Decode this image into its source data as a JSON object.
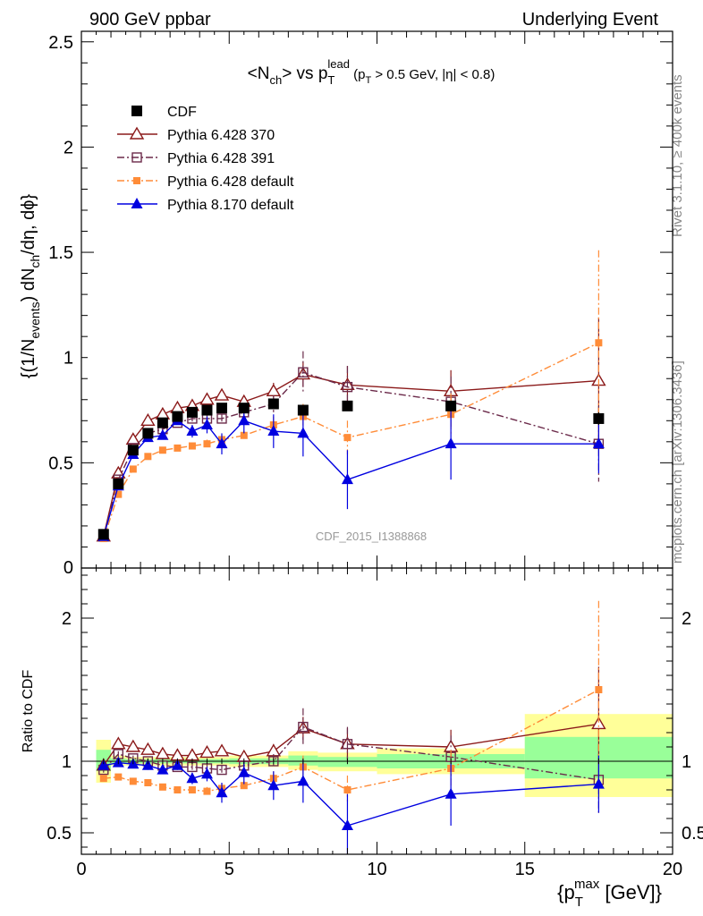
{
  "header": {
    "left": "900 GeV ppbar",
    "right": "Underlying Event"
  },
  "side": {
    "rivet": "Rivet 3.1.10, ≥ 400k events",
    "mcplots": "mcplots.cern.ch [arXiv:1306.3436]"
  },
  "chart_data": [
    {
      "type": "scatter",
      "title": "<N_ch> vs p_T^lead (p_T > 0.5 GeV, |η| < 0.8)",
      "watermark": "CDF_2015_I1388868",
      "ylabel": "{(1/N_events) dN_ch/dη, dϕ}",
      "xlim": [
        0,
        20
      ],
      "ylim": [
        0,
        2.55
      ],
      "yticks": [
        "0.5",
        "1",
        "1.5",
        "2",
        "2.5"
      ],
      "legend_position": "top-left",
      "x": [
        0.75,
        1.25,
        1.75,
        2.25,
        2.75,
        3.25,
        3.75,
        4.25,
        4.75,
        5.5,
        6.5,
        7.5,
        9.0,
        12.5,
        17.5
      ],
      "series": [
        {
          "name": "CDF",
          "color": "#000000",
          "marker": "square-filled",
          "line": "none",
          "values": [
            0.16,
            0.4,
            0.56,
            0.64,
            0.69,
            0.72,
            0.74,
            0.75,
            0.76,
            0.76,
            0.78,
            0.75,
            0.77,
            0.77,
            0.71
          ],
          "errors": [
            0.01,
            0.01,
            0.01,
            0.01,
            0.01,
            0.01,
            0.01,
            0.01,
            0.01,
            0.01,
            0.02,
            0.02,
            0.02,
            0.02,
            0.03
          ]
        },
        {
          "name": "Pythia 6.428 370",
          "color": "#8b1a1a",
          "marker": "triangle-open",
          "line": "solid",
          "values": [
            0.15,
            0.45,
            0.61,
            0.7,
            0.73,
            0.76,
            0.77,
            0.8,
            0.82,
            0.79,
            0.84,
            0.92,
            0.87,
            0.84,
            0.89
          ],
          "errors": [
            0.01,
            0.01,
            0.01,
            0.01,
            0.01,
            0.01,
            0.02,
            0.02,
            0.02,
            0.02,
            0.04,
            0.06,
            0.09,
            0.1,
            0.3
          ]
        },
        {
          "name": "Pythia 6.428 391",
          "color": "#6b2a4a",
          "marker": "square-open",
          "line": "dashdot",
          "values": [
            0.15,
            0.42,
            0.57,
            0.64,
            0.66,
            0.69,
            0.71,
            0.71,
            0.71,
            0.74,
            0.78,
            0.93,
            0.86,
            0.79,
            0.59
          ],
          "errors": [
            0.01,
            0.01,
            0.01,
            0.01,
            0.01,
            0.01,
            0.02,
            0.02,
            0.02,
            0.02,
            0.04,
            0.1,
            0.1,
            0.12,
            0.18
          ]
        },
        {
          "name": "Pythia 6.428 default",
          "color": "#ff8c38",
          "marker": "square-filled-small",
          "line": "dashdot",
          "values": [
            0.14,
            0.35,
            0.47,
            0.53,
            0.56,
            0.57,
            0.58,
            0.59,
            0.61,
            0.63,
            0.68,
            0.72,
            0.62,
            0.73,
            1.07
          ],
          "errors": [
            0.01,
            0.01,
            0.01,
            0.01,
            0.01,
            0.01,
            0.01,
            0.02,
            0.02,
            0.02,
            0.04,
            0.06,
            0.08,
            0.1,
            0.44
          ]
        },
        {
          "name": "Pythia 8.170 default",
          "color": "#0000e0",
          "marker": "triangle-filled",
          "line": "solid",
          "values": [
            0.15,
            0.39,
            0.54,
            0.62,
            0.63,
            0.7,
            0.65,
            0.68,
            0.59,
            0.7,
            0.65,
            0.64,
            0.42,
            0.59,
            0.59
          ],
          "errors": [
            0.01,
            0.01,
            0.01,
            0.02,
            0.02,
            0.02,
            0.03,
            0.04,
            0.05,
            0.06,
            0.08,
            0.11,
            0.14,
            0.17,
            0.14
          ]
        }
      ]
    },
    {
      "type": "scatter",
      "ylabel": "Ratio to CDF",
      "xlabel": "{p_T^max [GeV]}",
      "xlim": [
        0,
        20
      ],
      "ylim": [
        0.35,
        2.35
      ],
      "xticks": [
        "0",
        "5",
        "10",
        "15",
        "20"
      ],
      "yticks": [
        "0.5",
        "1",
        "2"
      ],
      "bands": [
        {
          "x0": 0.5,
          "x1": 1.0,
          "yellow": [
            0.85,
            1.15
          ],
          "green": [
            0.93,
            1.08
          ]
        },
        {
          "x0": 1.0,
          "x1": 1.5,
          "yellow": [
            0.97,
            1.04
          ],
          "green": [
            0.985,
            1.02
          ]
        },
        {
          "x0": 1.5,
          "x1": 5.0,
          "yellow": [
            0.97,
            1.03
          ],
          "green": [
            0.985,
            1.015
          ]
        },
        {
          "x0": 5.0,
          "x1": 7.0,
          "yellow": [
            0.96,
            1.04
          ],
          "green": [
            0.98,
            1.02
          ]
        },
        {
          "x0": 7.0,
          "x1": 8.0,
          "yellow": [
            0.94,
            1.07
          ],
          "green": [
            0.97,
            1.04
          ]
        },
        {
          "x0": 8.0,
          "x1": 10.0,
          "yellow": [
            0.93,
            1.06
          ],
          "green": [
            0.96,
            1.03
          ]
        },
        {
          "x0": 10.0,
          "x1": 15.0,
          "yellow": [
            0.91,
            1.09
          ],
          "green": [
            0.95,
            1.05
          ]
        },
        {
          "x0": 15.0,
          "x1": 20.0,
          "yellow": [
            0.75,
            1.33
          ],
          "green": [
            0.88,
            1.17
          ]
        }
      ],
      "series": [
        {
          "name": "Pythia 6.428 370",
          "values": [
            0.97,
            1.12,
            1.1,
            1.08,
            1.05,
            1.04,
            1.04,
            1.06,
            1.07,
            1.03,
            1.07,
            1.23,
            1.12,
            1.1,
            1.26
          ],
          "errors": [
            0.02,
            0.02,
            0.02,
            0.02,
            0.02,
            0.02,
            0.03,
            0.03,
            0.03,
            0.03,
            0.05,
            0.08,
            0.11,
            0.12,
            0.4
          ]
        },
        {
          "name": "Pythia 6.428 391",
          "values": [
            0.94,
            1.05,
            1.02,
            1.0,
            0.97,
            0.96,
            0.96,
            0.95,
            0.94,
            0.97,
            1.0,
            1.24,
            1.12,
            1.03,
            0.87
          ],
          "errors": [
            0.02,
            0.02,
            0.02,
            0.02,
            0.02,
            0.02,
            0.03,
            0.03,
            0.03,
            0.03,
            0.05,
            0.13,
            0.12,
            0.15,
            0.25
          ]
        },
        {
          "name": "Pythia 6.428 default",
          "values": [
            0.88,
            0.89,
            0.86,
            0.85,
            0.82,
            0.8,
            0.8,
            0.79,
            0.81,
            0.83,
            0.88,
            0.96,
            0.8,
            0.95,
            1.5
          ],
          "errors": [
            0.02,
            0.02,
            0.02,
            0.02,
            0.02,
            0.02,
            0.02,
            0.03,
            0.03,
            0.03,
            0.05,
            0.08,
            0.1,
            0.13,
            0.62
          ]
        },
        {
          "name": "Pythia 8.170 default",
          "values": [
            0.97,
            0.99,
            0.98,
            0.97,
            0.94,
            0.97,
            0.88,
            0.91,
            0.78,
            0.92,
            0.83,
            0.86,
            0.55,
            0.77,
            0.84
          ],
          "errors": [
            0.02,
            0.02,
            0.02,
            0.03,
            0.03,
            0.03,
            0.04,
            0.05,
            0.07,
            0.08,
            0.1,
            0.15,
            0.22,
            0.22,
            0.2
          ]
        }
      ]
    }
  ]
}
